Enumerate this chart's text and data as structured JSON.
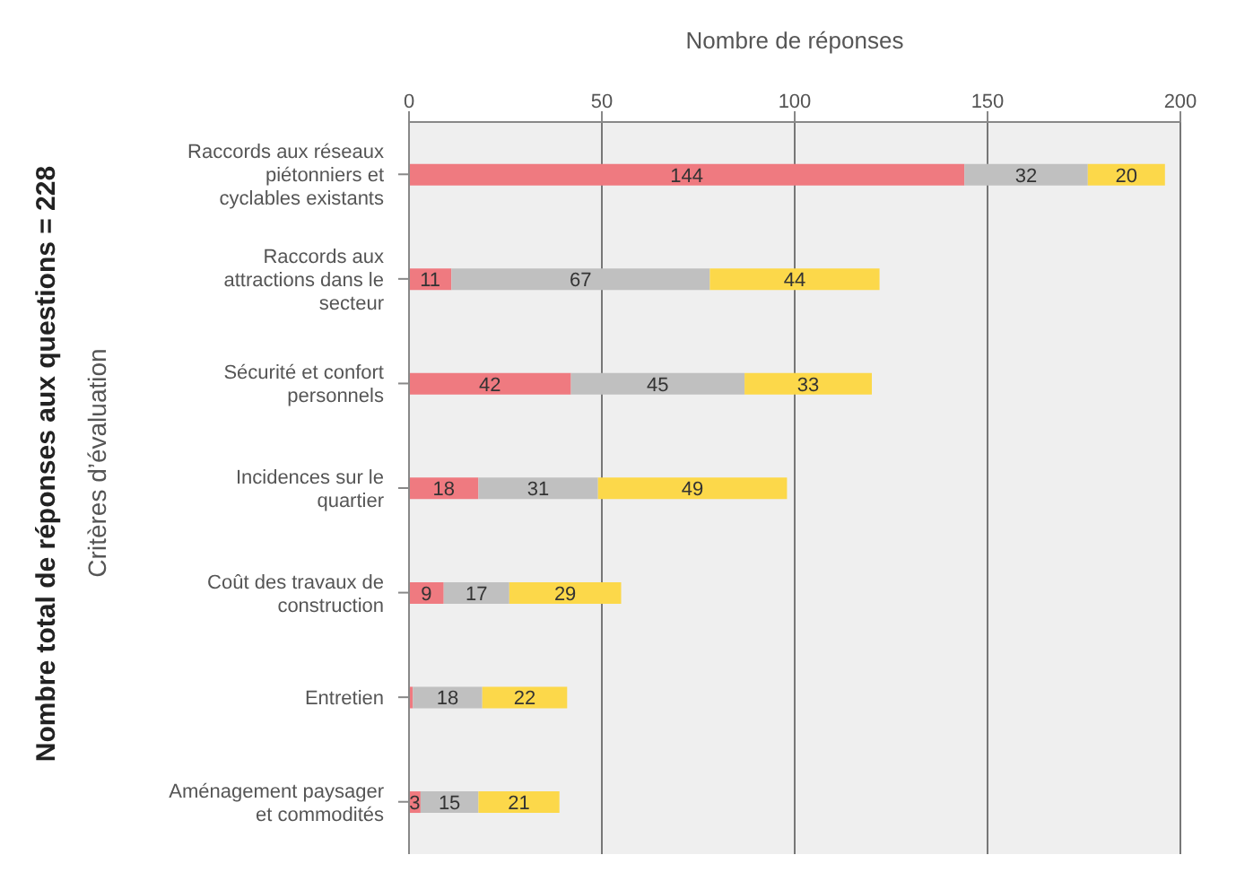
{
  "chart_data": {
    "type": "bar",
    "orientation": "horizontal",
    "stacked": true,
    "categories": [
      "Raccords aux réseaux piétonniers et cyclables existants",
      "Raccords aux attractions dans le secteur",
      "Sécurité et confort personnels",
      "Incidences sur le quartier",
      "Coût des travaux de construction",
      "Entretien",
      "Aménagement paysager et commodités"
    ],
    "series": [
      {
        "color": "#ef7a80",
        "values": [
          144,
          11,
          42,
          18,
          9,
          1,
          3
        ],
        "value_labels": [
          "144",
          "11",
          "42",
          "18",
          "9",
          null,
          "3"
        ]
      },
      {
        "color": "#c0c0c0",
        "values": [
          32,
          67,
          45,
          31,
          17,
          18,
          15
        ],
        "value_labels": [
          "32",
          "67",
          "45",
          "31",
          "17",
          "18",
          "15"
        ]
      },
      {
        "color": "#fcd84a",
        "values": [
          20,
          44,
          33,
          49,
          29,
          22,
          21
        ],
        "value_labels": [
          "20",
          "44",
          "33",
          "49",
          "29",
          "22",
          "21"
        ]
      }
    ],
    "xlim": [
      0,
      200
    ],
    "xticks": [
      0,
      50,
      100,
      150,
      200
    ],
    "grid": "x",
    "xlabel": "Nombre de réponses",
    "ylabel": "Critères d’évaluation",
    "annotations": [
      "Nombre total de réponses aux questions = 228"
    ]
  }
}
